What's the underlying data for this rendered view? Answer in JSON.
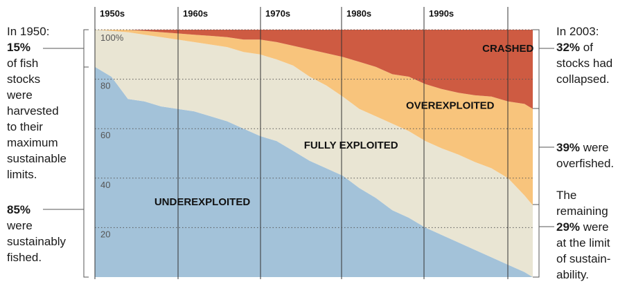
{
  "chart_data": {
    "type": "area",
    "stacked": true,
    "normalized_percent": true,
    "x_labels": [
      "1950s",
      "1960s",
      "1970s",
      "1980s",
      "1990s"
    ],
    "x": [
      1950,
      1952,
      1954,
      1956,
      1958,
      1960,
      1962,
      1964,
      1966,
      1968,
      1970,
      1972,
      1974,
      1976,
      1978,
      1980,
      1982,
      1984,
      1986,
      1988,
      1990,
      1992,
      1994,
      1996,
      1998,
      2000,
      2002,
      2003
    ],
    "xlim": [
      1950,
      2003
    ],
    "ylim": [
      0,
      100
    ],
    "y_ticks": [
      {
        "value": 100,
        "label": "100%"
      },
      {
        "value": 80,
        "label": "80"
      },
      {
        "value": 60,
        "label": "60"
      },
      {
        "value": 40,
        "label": "40"
      },
      {
        "value": 20,
        "label": "20"
      }
    ],
    "grid": "dotted horizontal at 20% intervals, vertical decade lines",
    "series": [
      {
        "name": "UNDEREXPLOITED",
        "color": "#a3c2d9",
        "values": [
          85,
          81,
          72,
          71,
          69,
          68,
          67,
          65,
          63,
          60,
          57,
          55,
          51,
          47,
          44,
          41,
          36,
          32,
          27,
          24,
          20,
          17,
          14,
          11,
          8,
          5,
          2,
          0
        ]
      },
      {
        "name": "FULLY EXPLOITED",
        "color": "#e9e5d3",
        "values": [
          15,
          18.5,
          27,
          27,
          28,
          28,
          28,
          29,
          30,
          31,
          33,
          33,
          34.5,
          34,
          33.5,
          32,
          32,
          33,
          35,
          35,
          35,
          35,
          35.5,
          35.5,
          36,
          35,
          31,
          29
        ]
      },
      {
        "name": "OVEREXPLOITED",
        "color": "#f8c47c",
        "values": [
          0,
          0.5,
          1,
          1.5,
          2,
          2.5,
          3,
          3.5,
          4,
          5,
          6,
          7,
          8,
          11,
          13,
          16,
          19,
          20,
          20,
          22,
          23,
          24,
          25,
          27,
          29,
          31,
          37,
          39
        ]
      },
      {
        "name": "CRASHED",
        "color": "#ce5b42",
        "values": [
          0,
          0,
          0,
          0.5,
          1,
          1.5,
          2,
          2.5,
          3,
          4,
          4,
          5,
          6.5,
          8,
          9.5,
          11,
          13,
          15,
          18,
          19,
          22,
          24,
          25.5,
          26.5,
          27,
          29,
          30,
          32
        ]
      }
    ],
    "series_label_positions": {
      "UNDEREXPLOITED": {
        "x": 1963,
        "y": 29
      },
      "FULLY EXPLOITED": {
        "x": 1981,
        "y": 52
      },
      "OVEREXPLOITED": {
        "x": 1993,
        "y": 68
      },
      "CRASHED": {
        "x": 2000,
        "y": 91
      }
    }
  },
  "annotations": {
    "left_top": {
      "line1": "In 1950:",
      "value": "15%",
      "rest": "of fish\nstocks\nwere\nharvested\nto their\nmaximum\nsustainable\nlimits."
    },
    "left_bottom": {
      "value": "85%",
      "rest": "were\nsustainably\nfished."
    },
    "right_top": {
      "line1": "In 2003:",
      "value": "32%",
      "rest_inline": " of",
      "rest": "stocks had\ncollapsed."
    },
    "right_mid": {
      "value": "39%",
      "rest_inline": " were",
      "rest": "overfished."
    },
    "right_bottom": {
      "line1": "The\nremaining",
      "value": "29%",
      "rest_inline": " were",
      "rest": "at the limit\nof sustain-\nability."
    }
  }
}
